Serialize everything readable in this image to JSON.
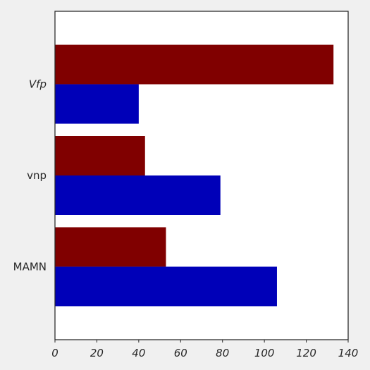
{
  "chart_data": {
    "type": "bar",
    "orientation": "horizontal",
    "categories": [
      "Vfp",
      "vnp",
      "MAMN"
    ],
    "category_styles": [
      "italic",
      "normal",
      "normal"
    ],
    "series": [
      {
        "values": [
          133,
          43,
          53
        ],
        "color": "#800000"
      },
      {
        "values": [
          40,
          79,
          106
        ],
        "color": "#0000b8"
      }
    ],
    "x_ticks": [
      "0",
      "20",
      "40",
      "60",
      "80",
      "100",
      "120",
      "140"
    ],
    "xlim": [
      0,
      140
    ],
    "title": "",
    "xlabel": "",
    "ylabel": "",
    "grid": false,
    "legend": "none",
    "background": "#f0f0f0",
    "plot_background": "#ffffff"
  }
}
